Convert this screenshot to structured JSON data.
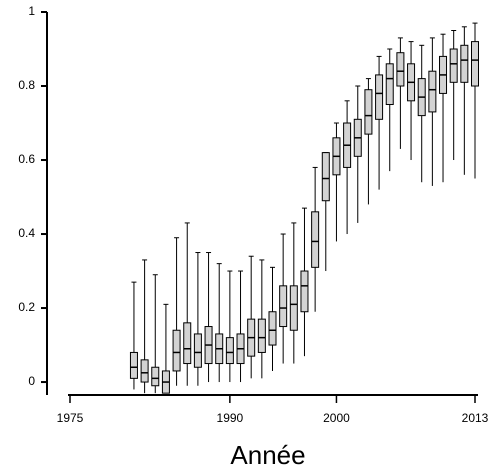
{
  "chart_data": {
    "type": "box",
    "x_label": "Année",
    "x": [
      1981,
      1982,
      1983,
      1984,
      1985,
      1986,
      1987,
      1988,
      1989,
      1990,
      1991,
      1992,
      1993,
      1994,
      1995,
      1996,
      1997,
      1998,
      1999,
      2000,
      2001,
      2002,
      2003,
      2004,
      2005,
      2006,
      2007,
      2008,
      2009,
      2010,
      2011,
      2012,
      2013
    ],
    "min": [
      -0.02,
      -0.03,
      -0.03,
      -0.03,
      -0.01,
      -0.01,
      -0.01,
      0.0,
      0.0,
      0.0,
      0.0,
      0.01,
      0.01,
      0.03,
      0.05,
      0.05,
      0.07,
      0.19,
      0.3,
      0.38,
      0.4,
      0.43,
      0.48,
      0.52,
      0.57,
      0.63,
      0.6,
      0.54,
      0.53,
      0.54,
      0.6,
      0.56,
      0.55
    ],
    "q1": [
      0.01,
      0.0,
      -0.01,
      -0.03,
      0.03,
      0.05,
      0.04,
      0.05,
      0.05,
      0.05,
      0.05,
      0.07,
      0.08,
      0.1,
      0.15,
      0.14,
      0.19,
      0.31,
      0.49,
      0.56,
      0.58,
      0.61,
      0.67,
      0.71,
      0.75,
      0.8,
      0.76,
      0.72,
      0.73,
      0.78,
      0.81,
      0.81,
      0.8
    ],
    "median": [
      0.04,
      0.025,
      0.01,
      0.0,
      0.08,
      0.09,
      0.08,
      0.1,
      0.09,
      0.08,
      0.09,
      0.12,
      0.12,
      0.14,
      0.2,
      0.21,
      0.26,
      0.38,
      0.55,
      0.61,
      0.64,
      0.66,
      0.72,
      0.78,
      0.82,
      0.84,
      0.81,
      0.77,
      0.79,
      0.83,
      0.86,
      0.87,
      0.87
    ],
    "q3": [
      0.08,
      0.06,
      0.04,
      0.03,
      0.14,
      0.16,
      0.13,
      0.15,
      0.13,
      0.12,
      0.13,
      0.17,
      0.17,
      0.19,
      0.26,
      0.26,
      0.3,
      0.46,
      0.62,
      0.66,
      0.7,
      0.71,
      0.79,
      0.83,
      0.86,
      0.89,
      0.86,
      0.82,
      0.84,
      0.88,
      0.9,
      0.91,
      0.92
    ],
    "max": [
      0.27,
      0.33,
      0.29,
      0.21,
      0.39,
      0.43,
      0.35,
      0.35,
      0.32,
      0.3,
      0.3,
      0.34,
      0.33,
      0.31,
      0.4,
      0.43,
      0.47,
      0.58,
      0.62,
      0.7,
      0.76,
      0.8,
      0.82,
      0.88,
      0.9,
      0.93,
      0.92,
      0.91,
      0.93,
      0.94,
      0.95,
      0.96,
      0.97
    ],
    "color": "#d3d3d3",
    "xlim": [
      1975,
      2013
    ],
    "xticks": [
      1975,
      1990,
      2000,
      2013
    ],
    "ylim": [
      -0.035,
      1
    ],
    "yticks": [
      0,
      0.2,
      0.4,
      0.6,
      0.8,
      1
    ]
  }
}
